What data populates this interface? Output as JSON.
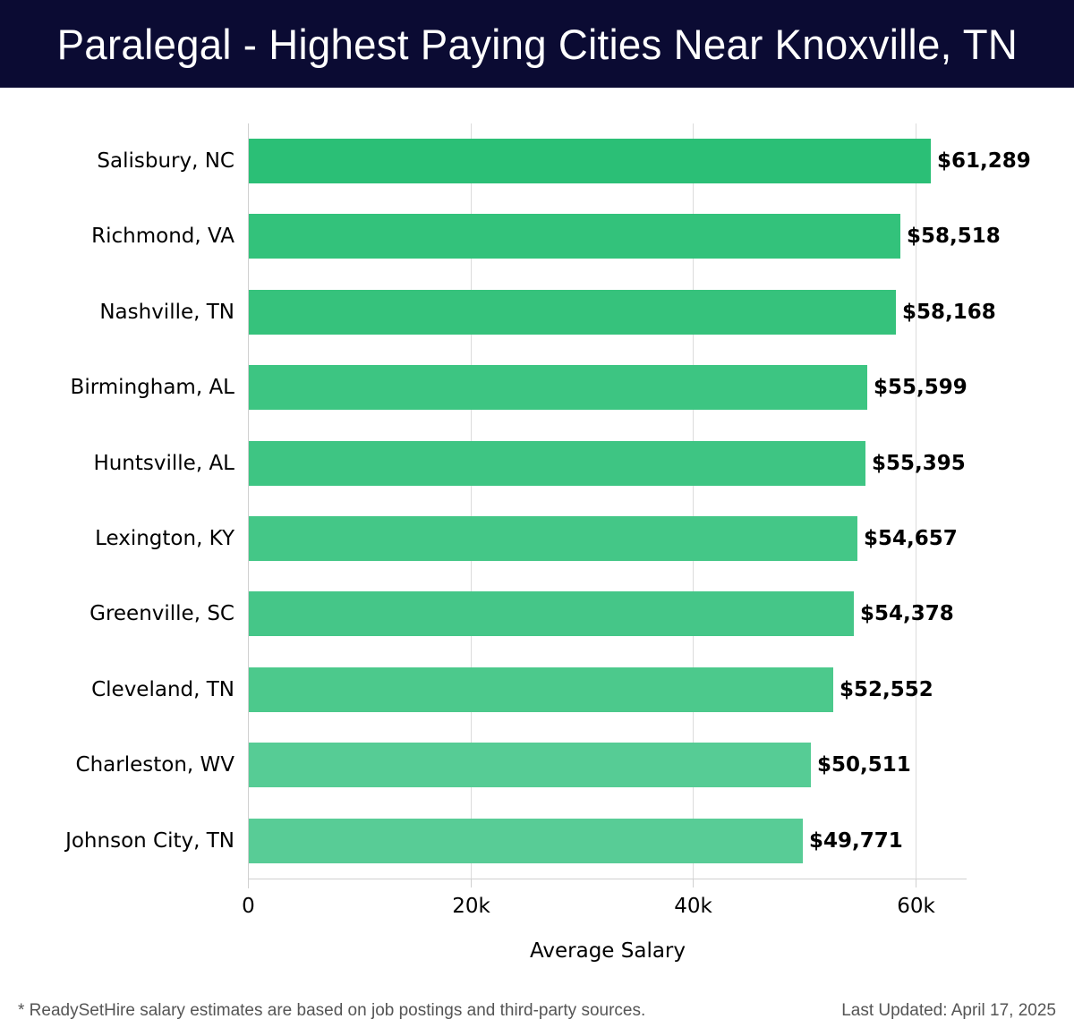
{
  "header": {
    "title": "Paralegal - Highest Paying Cities Near Knoxville, TN"
  },
  "chart_data": {
    "type": "bar",
    "orientation": "horizontal",
    "title": "Paralegal - Highest Paying Cities Near Knoxville, TN",
    "xlabel": "Average Salary",
    "ylabel": "",
    "categories": [
      "Salisbury, NC",
      "Richmond, VA",
      "Nashville, TN",
      "Birmingham, AL",
      "Huntsville, AL",
      "Lexington, KY",
      "Greenville, SC",
      "Cleveland, TN",
      "Charleston, WV",
      "Johnson City, TN"
    ],
    "values": [
      61289,
      58518,
      58168,
      55599,
      55395,
      54657,
      54378,
      52552,
      50511,
      49771
    ],
    "value_labels": [
      "$61,289",
      "$58,518",
      "$58,168",
      "$55,599",
      "$55,395",
      "$54,657",
      "$54,378",
      "$52,552",
      "$50,511",
      "$49,771"
    ],
    "colors": [
      "#2bbf76",
      "#33c27b",
      "#36c27c",
      "#3dc582",
      "#3ec583",
      "#44c787",
      "#45c688",
      "#4cc98c",
      "#56cc95",
      "#58cc96"
    ],
    "xticks": [
      0,
      20000,
      40000,
      60000
    ],
    "xtick_labels": [
      "0",
      "20k",
      "40k",
      "60k"
    ],
    "xlim": [
      0,
      64500
    ],
    "grid": true,
    "legend": null
  },
  "footer": {
    "note": "* ReadySetHire salary estimates are based on job postings and third-party sources.",
    "updated": "Last Updated: April 17, 2025"
  }
}
